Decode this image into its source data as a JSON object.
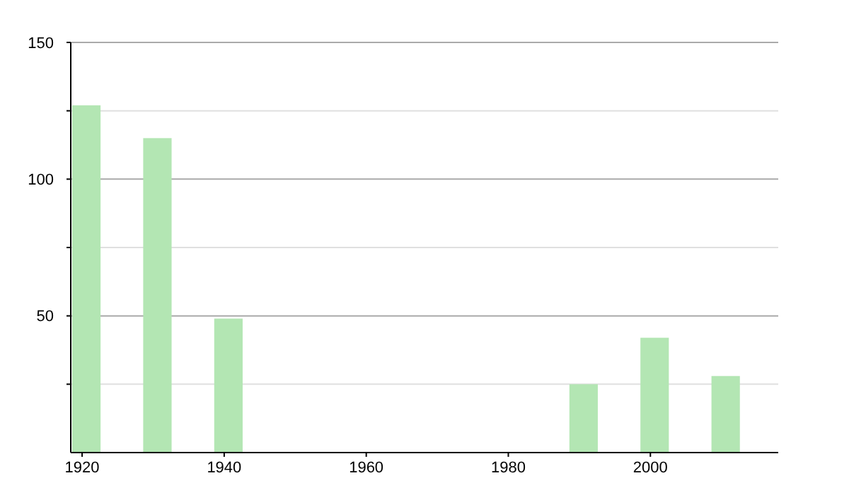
{
  "chart_data": {
    "type": "bar",
    "x": [
      1920,
      1930,
      1940,
      1990,
      2000,
      2010
    ],
    "values": [
      127,
      115,
      49,
      25,
      42,
      28
    ],
    "color": "#b3e6b3",
    "xlim": [
      1918.4,
      2018
    ],
    "xticks": [
      1920,
      1940,
      1960,
      1980,
      2000
    ],
    "ylim": [
      0,
      150
    ],
    "yticks": [
      {
        "value": 25,
        "label": null
      },
      50,
      {
        "value": 75,
        "label": null
      },
      100,
      {
        "value": 125,
        "label": null
      },
      150
    ],
    "grid": "y"
  }
}
